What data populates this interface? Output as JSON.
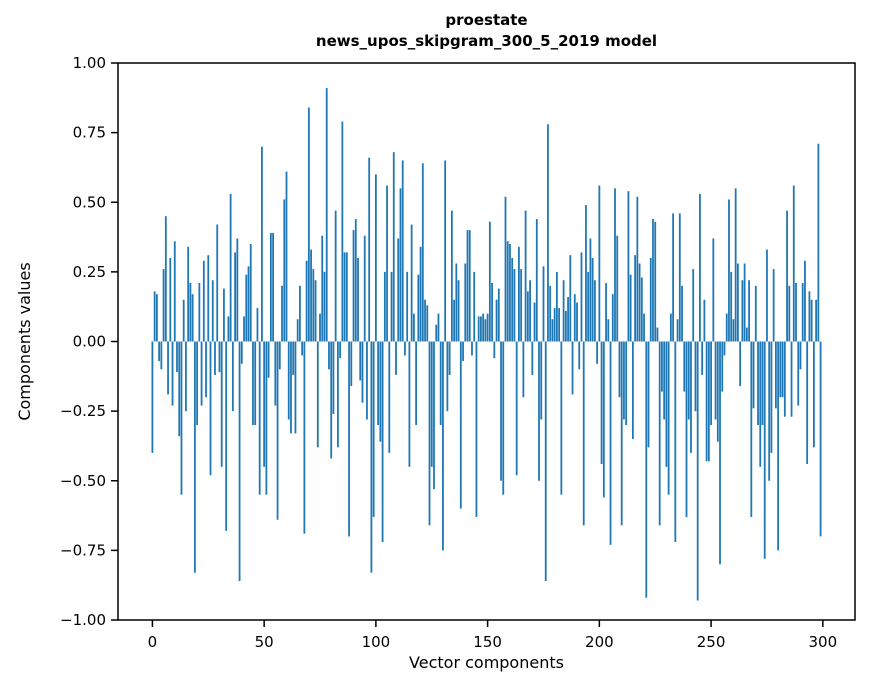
{
  "figure": {
    "title_line1": "proestate",
    "title_line2": "news_upos_skipgram_300_5_2019 model"
  },
  "chart_data": {
    "type": "bar",
    "title": "proestate\nnews_upos_skipgram_300_5_2019 model",
    "xlabel": "Vector components",
    "ylabel": "Components values",
    "xlim": [
      -15.4,
      314.4
    ],
    "ylim": [
      -1.0,
      1.0
    ],
    "grid": false,
    "legend": "none",
    "bar_color": "#1f77b4",
    "x_ticks": [
      0,
      50,
      100,
      150,
      200,
      250,
      300
    ],
    "x_tick_labels": [
      "0",
      "50",
      "100",
      "150",
      "200",
      "250",
      "300"
    ],
    "y_ticks": [
      -1.0,
      -0.75,
      -0.5,
      -0.25,
      0.0,
      0.25,
      0.5,
      0.75,
      1.0
    ],
    "y_tick_labels": [
      "−1.00",
      "−0.75",
      "−0.50",
      "−0.25",
      "0.00",
      "0.25",
      "0.50",
      "0.75",
      "1.00"
    ],
    "x_start": 0,
    "values": [
      -0.4,
      0.18,
      0.17,
      -0.07,
      -0.1,
      0.26,
      0.45,
      -0.19,
      0.3,
      -0.23,
      0.36,
      -0.11,
      -0.34,
      -0.55,
      0.15,
      -0.25,
      0.34,
      0.21,
      0.17,
      -0.83,
      -0.3,
      0.21,
      -0.23,
      0.29,
      -0.2,
      0.31,
      -0.48,
      0.22,
      -0.12,
      0.42,
      -0.11,
      -0.45,
      0.19,
      -0.68,
      0.09,
      0.53,
      -0.25,
      0.32,
      0.37,
      -0.86,
      -0.08,
      0.09,
      0.24,
      0.27,
      0.35,
      -0.3,
      -0.3,
      0.12,
      -0.55,
      0.7,
      -0.45,
      -0.55,
      -0.13,
      0.39,
      0.39,
      -0.23,
      -0.64,
      -0.1,
      0.2,
      0.51,
      0.61,
      -0.28,
      -0.33,
      -0.12,
      -0.33,
      0.08,
      0.2,
      -0.05,
      -0.69,
      0.29,
      0.84,
      0.33,
      0.26,
      0.22,
      -0.38,
      0.1,
      0.38,
      0.25,
      0.91,
      -0.1,
      -0.42,
      -0.26,
      0.47,
      -0.38,
      -0.06,
      0.79,
      0.32,
      0.32,
      -0.7,
      -0.16,
      0.4,
      0.44,
      0.3,
      -0.14,
      -0.22,
      0.38,
      -0.28,
      0.66,
      -0.83,
      -0.63,
      0.6,
      -0.3,
      -0.36,
      -0.72,
      0.25,
      0.56,
      -0.4,
      0.25,
      0.68,
      -0.12,
      0.37,
      0.55,
      0.65,
      -0.05,
      0.25,
      -0.45,
      0.42,
      0.1,
      -0.3,
      0.24,
      0.34,
      0.64,
      0.15,
      0.13,
      -0.66,
      -0.45,
      -0.53,
      0.06,
      0.1,
      -0.3,
      -0.75,
      0.65,
      -0.25,
      -0.12,
      0.47,
      0.15,
      0.28,
      0.22,
      -0.6,
      -0.07,
      0.28,
      0.4,
      0.4,
      -0.05,
      0.25,
      -0.63,
      0.09,
      0.09,
      0.1,
      0.08,
      0.1,
      0.43,
      0.21,
      -0.06,
      0.15,
      0.19,
      -0.5,
      -0.55,
      0.52,
      0.36,
      0.35,
      0.3,
      0.26,
      -0.48,
      0.34,
      0.26,
      -0.2,
      0.47,
      0.18,
      0.22,
      -0.12,
      0.14,
      0.44,
      -0.5,
      -0.28,
      0.27,
      -0.86,
      0.78,
      0.2,
      0.08,
      0.12,
      0.25,
      0.12,
      -0.55,
      0.22,
      0.11,
      0.16,
      0.31,
      -0.19,
      0.17,
      0.14,
      -0.1,
      0.32,
      -0.66,
      0.49,
      0.25,
      0.37,
      0.3,
      0.22,
      -0.08,
      0.56,
      -0.44,
      -0.56,
      0.21,
      0.08,
      -0.73,
      0.17,
      0.55,
      0.38,
      -0.2,
      -0.66,
      -0.28,
      -0.3,
      0.54,
      0.24,
      -0.35,
      0.31,
      0.52,
      0.28,
      0.23,
      0.1,
      -0.92,
      -0.38,
      0.3,
      0.44,
      0.43,
      0.05,
      -0.66,
      -0.18,
      -0.28,
      -0.45,
      -0.55,
      0.1,
      0.46,
      -0.72,
      0.08,
      0.46,
      0.2,
      -0.18,
      -0.63,
      -0.28,
      -0.4,
      0.26,
      -0.25,
      -0.93,
      0.53,
      -0.12,
      0.15,
      -0.43,
      -0.43,
      -0.3,
      0.37,
      -0.28,
      -0.36,
      -0.8,
      -0.18,
      -0.05,
      0.1,
      0.51,
      0.25,
      0.08,
      0.55,
      0.28,
      -0.16,
      0.22,
      0.28,
      0.05,
      0.22,
      -0.63,
      -0.24,
      0.2,
      -0.3,
      -0.45,
      -0.3,
      -0.78,
      0.33,
      -0.5,
      -0.4,
      0.26,
      -0.24,
      -0.75,
      -0.2,
      -0.2,
      -0.27,
      0.47,
      0.2,
      -0.27,
      0.56,
      0.21,
      -0.23,
      -0.1,
      0.21,
      0.29,
      -0.44,
      0.18,
      0.15,
      -0.38,
      0.15,
      0.71,
      -0.7
    ]
  }
}
